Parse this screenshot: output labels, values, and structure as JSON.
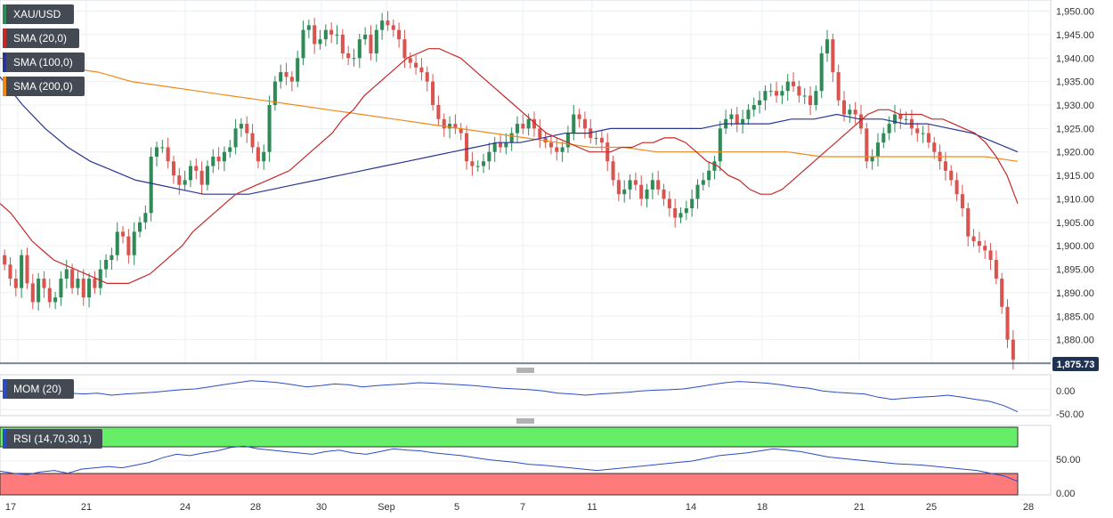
{
  "chart": {
    "symbol": "XAU/USD",
    "indicators": [
      {
        "label": "SMA (20,0)",
        "color": "#c62828"
      },
      {
        "label": "SMA (100,0)",
        "color": "#283593"
      },
      {
        "label": "SMA (200,0)",
        "color": "#ef8a1a"
      }
    ],
    "last_price": "1,875.73",
    "colors": {
      "up": "#2e8b57",
      "down": "#d9534f",
      "grid": "#e3e6ea",
      "panel_border": "#c9ced6"
    }
  },
  "mom_panel": {
    "label": "MOM (20)",
    "color": "#2b4cc4",
    "ticks": [
      "0.00",
      "-50.00"
    ]
  },
  "rsi_panel": {
    "label": "RSI (14,70,30,1)",
    "color": "#2b4cc4",
    "ticks": [
      "50.00",
      "0.00"
    ],
    "overbought_color": "#66ee66",
    "oversold_color": "#ff7b7b"
  },
  "x_axis_labels": [
    "17",
    "21",
    "24",
    "28",
    "30",
    "Sep",
    "5",
    "7",
    "11",
    "14",
    "18",
    "21",
    "25",
    "28"
  ],
  "chart_data": {
    "type": "candlestick",
    "title": "",
    "ylim": [
      1875,
      1952
    ],
    "y_ticks": [
      "1,950.00",
      "1,945.00",
      "1,940.00",
      "1,935.00",
      "1,930.00",
      "1,925.00",
      "1,920.00",
      "1,915.00",
      "1,910.00",
      "1,905.00",
      "1,900.00",
      "1,895.00",
      "1,890.00",
      "1,885.00",
      "1,880.00"
    ],
    "y_tick_values": [
      1950,
      1945,
      1940,
      1935,
      1930,
      1925,
      1920,
      1915,
      1910,
      1905,
      1900,
      1895,
      1890,
      1885,
      1880
    ],
    "close": [
      1896,
      1893,
      1891,
      1898,
      1892,
      1888,
      1893,
      1891,
      1888,
      1889,
      1893,
      1895,
      1891,
      1893,
      1889,
      1893,
      1891,
      1895,
      1897,
      1898,
      1903,
      1902,
      1898,
      1903,
      1905,
      1907,
      1919,
      1921,
      1921,
      1918,
      1915,
      1913,
      1914,
      1917,
      1916,
      1913,
      1917,
      1919,
      1918,
      1920,
      1921,
      1925,
      1926,
      1924,
      1921,
      1918,
      1920,
      1930,
      1935,
      1937,
      1936,
      1935,
      1940,
      1946,
      1947,
      1943,
      1944,
      1946,
      1945,
      1945,
      1941,
      1940,
      1940,
      1944,
      1945,
      1941,
      1946,
      1948,
      1947,
      1946,
      1944,
      1940,
      1939,
      1938,
      1937,
      1935,
      1930,
      1927,
      1925,
      1926,
      1925,
      1924,
      1918,
      1917,
      1917,
      1918,
      1920,
      1922,
      1921,
      1922,
      1924,
      1926,
      1925,
      1927,
      1925,
      1923,
      1922,
      1921,
      1920,
      1921,
      1924,
      1928,
      1927,
      1925,
      1923,
      1923,
      1922,
      1918,
      1914,
      1911,
      1912,
      1914,
      1913,
      1910,
      1912,
      1914,
      1912,
      1910,
      1908,
      1906,
      1907,
      1908,
      1910,
      1913,
      1914,
      1916,
      1918,
      1925,
      1927,
      1928,
      1926,
      1927,
      1929,
      1930,
      1931,
      1933,
      1933,
      1932,
      1933,
      1935,
      1934,
      1932,
      1932,
      1930,
      1933,
      1941,
      1944,
      1937,
      1931,
      1928,
      1929,
      1928,
      1925,
      1918,
      1919,
      1922,
      1924,
      1926,
      1928,
      1927,
      1927,
      1925,
      1924,
      1924,
      1922,
      1920,
      1918,
      1916,
      1914,
      1911,
      1908,
      1902,
      1901,
      1900,
      1899,
      1897,
      1893,
      1887,
      1880,
      1875.73
    ],
    "sma20_y": [
      1909,
      1907,
      1904,
      1901,
      1899,
      1897,
      1896,
      1895,
      1894,
      1893,
      1892,
      1892,
      1892,
      1893,
      1894,
      1896,
      1898,
      1900,
      1903,
      1905,
      1907,
      1909,
      1911,
      1912,
      1913,
      1914,
      1915,
      1916,
      1918,
      1920,
      1922,
      1924,
      1927,
      1929,
      1932,
      1934,
      1936,
      1938,
      1940,
      1941,
      1942,
      1942,
      1941,
      1940,
      1938,
      1936,
      1934,
      1932,
      1930,
      1928,
      1926,
      1924,
      1923,
      1922,
      1921,
      1920,
      1920,
      1920,
      1921,
      1921,
      1922,
      1922,
      1923,
      1923,
      1922,
      1920,
      1918,
      1917,
      1915,
      1914,
      1912,
      1911,
      1911,
      1912,
      1914,
      1916,
      1918,
      1920,
      1922,
      1924,
      1926,
      1928,
      1929,
      1929,
      1928,
      1928,
      1928,
      1927,
      1927,
      1926,
      1925,
      1924,
      1922,
      1919,
      1915,
      1909
    ],
    "sma100_y": [
      1936,
      1930,
      1925,
      1921,
      1918,
      1916,
      1914,
      1913,
      1912,
      1911,
      1911,
      1911,
      1912,
      1913,
      1914,
      1915,
      1916,
      1917,
      1918,
      1919,
      1920,
      1921,
      1922,
      1922,
      1923,
      1924,
      1924,
      1925,
      1925,
      1925,
      1925,
      1925,
      1926,
      1926,
      1926,
      1927,
      1927,
      1928,
      1927,
      1927,
      1926,
      1926,
      1925,
      1924,
      1922,
      1920
    ],
    "sma200_y": [
      1940,
      1939,
      1938,
      1937,
      1935,
      1934,
      1933,
      1932,
      1931,
      1930,
      1929,
      1928,
      1927,
      1926,
      1925,
      1924,
      1923,
      1922,
      1921,
      1921,
      1920,
      1920,
      1920,
      1920,
      1920,
      1919,
      1919,
      1919,
      1919,
      1919,
      1919,
      1918
    ],
    "mom_values": [
      -5,
      -10,
      -12,
      -8,
      -14,
      -10,
      -12,
      -10,
      -15,
      -12,
      -10,
      -8,
      -5,
      -2,
      0,
      5,
      10,
      15,
      20,
      18,
      15,
      10,
      5,
      8,
      12,
      10,
      5,
      8,
      10,
      12,
      15,
      14,
      12,
      10,
      8,
      5,
      2,
      0,
      -2,
      -5,
      -10,
      -12,
      -15,
      -12,
      -10,
      -8,
      -5,
      -3,
      -2,
      0,
      5,
      10,
      15,
      18,
      16,
      14,
      10,
      5,
      2,
      -5,
      -8,
      -10,
      -12,
      -20,
      -25,
      -22,
      -20,
      -18,
      -15,
      -20,
      -25,
      -30,
      -40,
      -55
    ],
    "rsi_values": [
      35,
      32,
      30,
      34,
      36,
      32,
      38,
      40,
      42,
      40,
      44,
      48,
      55,
      60,
      58,
      62,
      65,
      70,
      72,
      68,
      66,
      64,
      62,
      60,
      64,
      66,
      62,
      60,
      64,
      68,
      66,
      65,
      62,
      60,
      58,
      55,
      52,
      50,
      48,
      45,
      44,
      42,
      40,
      38,
      36,
      38,
      40,
      42,
      44,
      46,
      48,
      50,
      54,
      58,
      60,
      62,
      65,
      68,
      66,
      64,
      60,
      56,
      54,
      52,
      50,
      48,
      46,
      45,
      44,
      42,
      40,
      38,
      36,
      32,
      28,
      20
    ]
  }
}
